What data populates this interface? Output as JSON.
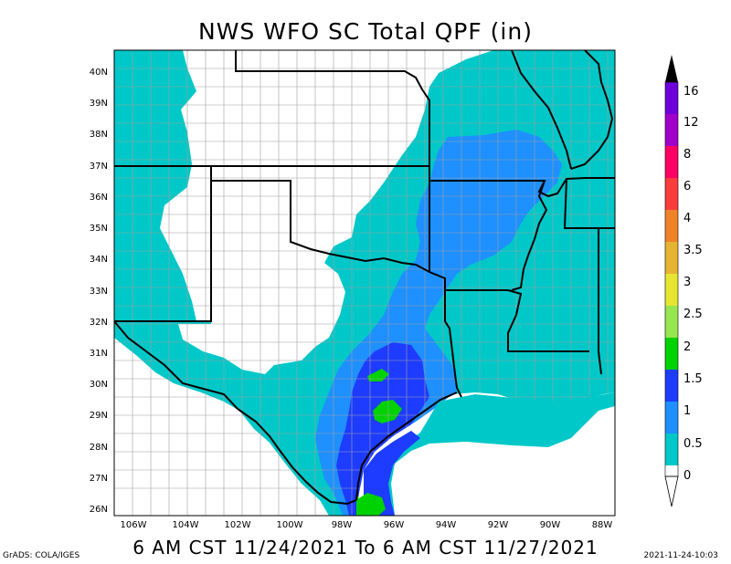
{
  "title": "NWS WFO SC Total QPF (in)",
  "valid_period": "6 AM CST 11/24/2021 To 6 AM CST 11/27/2021",
  "footer": {
    "credit": "GrADS: COLA/IGES",
    "timestamp": "2021-11-24-10:03"
  },
  "axes": {
    "lat_labels": [
      "40N",
      "39N",
      "38N",
      "37N",
      "36N",
      "35N",
      "34N",
      "33N",
      "32N",
      "31N",
      "30N",
      "29N",
      "28N",
      "27N",
      "26N"
    ],
    "lon_labels": [
      "106W",
      "104W",
      "102W",
      "100W",
      "98W",
      "96W",
      "94W",
      "92W",
      "90W",
      "88W"
    ]
  },
  "legend": {
    "levels": [
      "0",
      "0.5",
      "1",
      "1.5",
      "2",
      "2.5",
      "3",
      "3.5",
      "4",
      "6",
      "8",
      "12",
      "16"
    ],
    "colors": [
      "#00c8c8",
      "#1e90ff",
      "#1e3cff",
      "#00d200",
      "#96e650",
      "#e6e632",
      "#e6b432",
      "#f08228",
      "#fa3c3c",
      "#ff0064",
      "#a000c8",
      "#6e00dc",
      "#000000"
    ]
  },
  "colors": {
    "land_no_qpf": "#ffffff",
    "qpf_light": "#00c8c8",
    "qpf_half": "#1e90ff",
    "qpf_one": "#1e3cff",
    "qpf_onehalf": "#00d200",
    "county_lines": "#a0a0a0",
    "state_lines": "#000000"
  }
}
